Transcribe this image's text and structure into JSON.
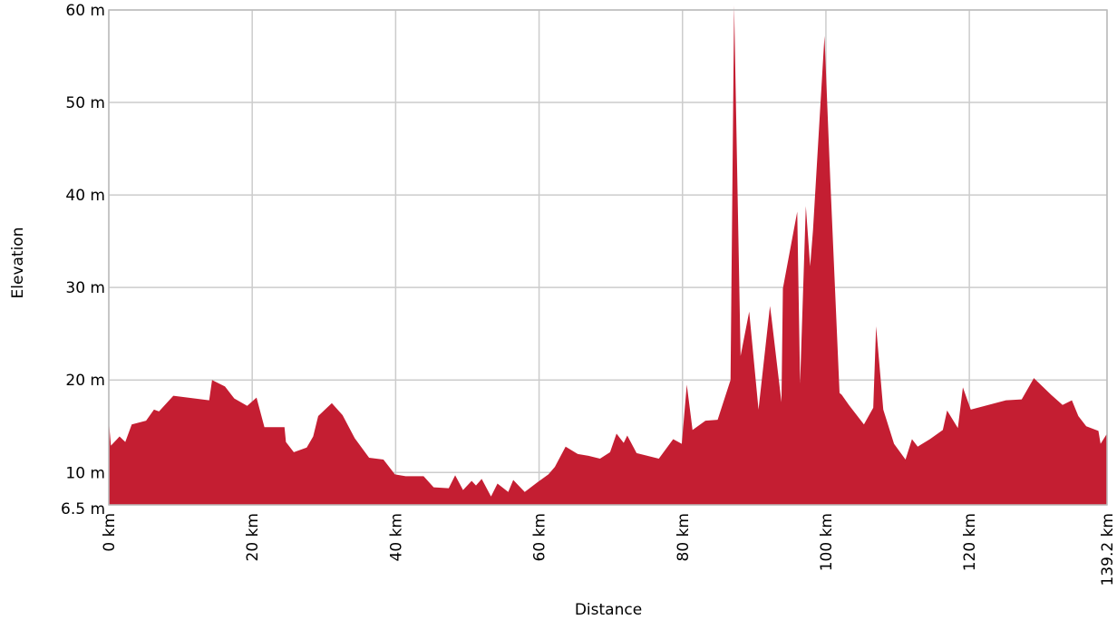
{
  "chart_data": {
    "type": "area",
    "title": "",
    "xlabel": "Distance",
    "ylabel": "Elevation",
    "xlim": [
      0,
      139.2
    ],
    "ylim": [
      6.5,
      60
    ],
    "grid": true,
    "colors": {
      "fill": "#c41e32",
      "grid": "#cccccc",
      "frame": "#bbbbbb"
    },
    "x_ticks": [
      {
        "value": 0,
        "label": "0 km"
      },
      {
        "value": 20,
        "label": "20 km"
      },
      {
        "value": 40,
        "label": "40 km"
      },
      {
        "value": 60,
        "label": "60 km"
      },
      {
        "value": 80,
        "label": "80 km"
      },
      {
        "value": 100,
        "label": "100 km"
      },
      {
        "value": 120,
        "label": "120 km"
      },
      {
        "value": 139.2,
        "label": "139.2 km"
      }
    ],
    "y_ticks": [
      {
        "value": 6.5,
        "label": "6.5 m"
      },
      {
        "value": 10,
        "label": "10 m"
      },
      {
        "value": 20,
        "label": "20 m"
      },
      {
        "value": 30,
        "label": "30 m"
      },
      {
        "value": 40,
        "label": "40 m"
      },
      {
        "value": 50,
        "label": "50 m"
      },
      {
        "value": 60,
        "label": "60 m"
      }
    ],
    "series": [
      {
        "x": [
          0,
          0.3,
          1.5,
          2.3,
          3.2,
          5.2,
          6.3,
          7,
          9,
          14,
          14.4,
          16.2,
          17.5,
          19.3,
          20.6,
          21.7,
          22.7,
          24.5,
          24.7,
          25.8,
          27.6,
          28.5,
          29.2,
          31.1,
          32.6,
          34.3,
          36.3,
          38.3,
          39.9,
          41.4,
          43.9,
          45.3,
          47.4,
          48.3,
          49.4,
          50.6,
          51.2,
          52,
          53.3,
          54.2,
          55.7,
          56.4,
          58,
          59.7,
          61.3,
          62.2,
          63.7,
          65.4,
          66.9,
          68.5,
          69.9,
          70.8,
          71.8,
          72.3,
          73.6,
          76.7,
          78.7,
          79.9,
          80.6,
          81.4,
          83.2,
          84.9,
          86.7,
          87.2,
          88.1,
          89.3,
          90.6,
          92.2,
          92.4,
          93.8,
          94,
          96,
          96.4,
          97.2,
          97.8,
          98.2,
          99.8,
          100.6,
          101.9,
          102.2,
          103.2,
          105.3,
          106.6,
          107,
          108,
          109.5,
          111.1,
          112,
          112.8,
          114.5,
          116.3,
          116.9,
          118.4,
          119.1,
          120.2,
          125.1,
          127.3,
          129,
          131.4,
          133,
          134.3,
          135.2,
          136.3,
          138,
          138.3,
          139.2
        ],
        "y": [
          15.6,
          12.9,
          13.9,
          13.3,
          15.2,
          15.6,
          16.8,
          16.6,
          18.3,
          17.8,
          20,
          19.3,
          18,
          17.2,
          18.1,
          14.9,
          14.9,
          14.9,
          13.3,
          12.2,
          12.7,
          13.9,
          16.1,
          17.5,
          16.2,
          13.7,
          11.6,
          11.4,
          9.8,
          9.6,
          9.6,
          8.4,
          8.3,
          9.7,
          8.1,
          9.1,
          8.6,
          9.3,
          7.4,
          8.8,
          7.9,
          9.2,
          7.9,
          8.9,
          9.8,
          10.6,
          12.8,
          12,
          11.8,
          11.5,
          12.2,
          14.2,
          13.2,
          14,
          12.1,
          11.5,
          13.6,
          13.1,
          19.5,
          14.6,
          15.6,
          15.7,
          20,
          60.5,
          22.6,
          27.4,
          16.8,
          28,
          26.8,
          17.6,
          29.9,
          38.2,
          19.6,
          38.8,
          32.3,
          36.2,
          57.2,
          41.8,
          18.6,
          18.4,
          17.3,
          15.2,
          17,
          25.8,
          16.8,
          13.1,
          11.4,
          13.6,
          12.8,
          13.6,
          14.6,
          16.7,
          14.8,
          19.2,
          16.8,
          17.8,
          17.9,
          20.2,
          18.4,
          17.3,
          17.8,
          16.1,
          15,
          14.5,
          13.1,
          14.2
        ]
      }
    ]
  }
}
